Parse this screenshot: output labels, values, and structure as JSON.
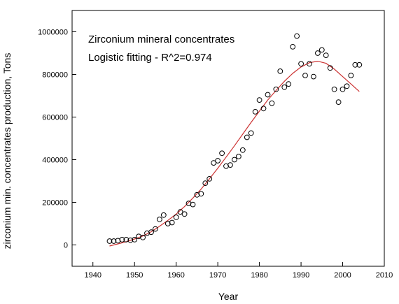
{
  "chart_data": {
    "type": "scatter",
    "title": "",
    "annotations": [
      "Zirconium mineral concentrates",
      "Logistic fitting - R^2=0.974"
    ],
    "xlabel": "Year",
    "ylabel": "zirconium min. concentrates production, Tons",
    "xlim": [
      1935,
      2010
    ],
    "ylim": [
      -100000,
      1100000
    ],
    "xticks": [
      1940,
      1950,
      1960,
      1970,
      1980,
      1990,
      2000,
      2010
    ],
    "xtick_labels": [
      "1940",
      "1950",
      "1960",
      "1970",
      "1980",
      "1990",
      "2000",
      "2010"
    ],
    "yticks": [
      0,
      200000,
      400000,
      600000,
      800000,
      1000000
    ],
    "ytick_labels": [
      "0",
      "200000",
      "400000",
      "600000",
      "800000",
      "1000000"
    ],
    "grid": false,
    "marker_color": "#000000",
    "fit_color": "#cc3333",
    "series": [
      {
        "kind": "scatter",
        "points": [
          [
            1944,
            18000
          ],
          [
            1945,
            18000
          ],
          [
            1946,
            20000
          ],
          [
            1947,
            25000
          ],
          [
            1948,
            25000
          ],
          [
            1949,
            22000
          ],
          [
            1950,
            25000
          ],
          [
            1951,
            40000
          ],
          [
            1952,
            35000
          ],
          [
            1953,
            55000
          ],
          [
            1954,
            60000
          ],
          [
            1955,
            75000
          ],
          [
            1956,
            120000
          ],
          [
            1957,
            140000
          ],
          [
            1958,
            100000
          ],
          [
            1959,
            105000
          ],
          [
            1960,
            130000
          ],
          [
            1961,
            155000
          ],
          [
            1962,
            145000
          ],
          [
            1963,
            195000
          ],
          [
            1964,
            190000
          ],
          [
            1965,
            235000
          ],
          [
            1966,
            240000
          ],
          [
            1967,
            290000
          ],
          [
            1968,
            310000
          ],
          [
            1969,
            385000
          ],
          [
            1970,
            395000
          ],
          [
            1971,
            430000
          ],
          [
            1972,
            370000
          ],
          [
            1973,
            375000
          ],
          [
            1974,
            400000
          ],
          [
            1975,
            415000
          ],
          [
            1976,
            445000
          ],
          [
            1977,
            505000
          ],
          [
            1978,
            525000
          ],
          [
            1979,
            625000
          ],
          [
            1980,
            680000
          ],
          [
            1981,
            640000
          ],
          [
            1982,
            705000
          ],
          [
            1983,
            665000
          ],
          [
            1984,
            730000
          ],
          [
            1985,
            815000
          ],
          [
            1986,
            740000
          ],
          [
            1987,
            755000
          ],
          [
            1988,
            930000
          ],
          [
            1989,
            980000
          ],
          [
            1990,
            850000
          ],
          [
            1991,
            795000
          ],
          [
            1992,
            850000
          ],
          [
            1993,
            790000
          ],
          [
            1994,
            900000
          ],
          [
            1995,
            915000
          ],
          [
            1996,
            890000
          ],
          [
            1997,
            830000
          ],
          [
            1998,
            730000
          ],
          [
            1999,
            670000
          ],
          [
            2000,
            730000
          ],
          [
            2001,
            745000
          ],
          [
            2002,
            795000
          ],
          [
            2003,
            845000
          ],
          [
            2004,
            845000
          ]
        ]
      },
      {
        "kind": "line",
        "points": [
          [
            1944,
            -5000
          ],
          [
            1946,
            5000
          ],
          [
            1948,
            15000
          ],
          [
            1950,
            28000
          ],
          [
            1952,
            42000
          ],
          [
            1954,
            62000
          ],
          [
            1956,
            88000
          ],
          [
            1958,
            115000
          ],
          [
            1960,
            145000
          ],
          [
            1962,
            180000
          ],
          [
            1964,
            220000
          ],
          [
            1966,
            262000
          ],
          [
            1968,
            310000
          ],
          [
            1970,
            360000
          ],
          [
            1972,
            412000
          ],
          [
            1974,
            465000
          ],
          [
            1976,
            520000
          ],
          [
            1978,
            575000
          ],
          [
            1980,
            628000
          ],
          [
            1982,
            680000
          ],
          [
            1984,
            725000
          ],
          [
            1986,
            768000
          ],
          [
            1988,
            805000
          ],
          [
            1990,
            835000
          ],
          [
            1992,
            855000
          ],
          [
            1994,
            862000
          ],
          [
            1996,
            852000
          ],
          [
            1998,
            825000
          ],
          [
            2000,
            790000
          ],
          [
            2002,
            755000
          ],
          [
            2004,
            720000
          ]
        ]
      }
    ]
  }
}
